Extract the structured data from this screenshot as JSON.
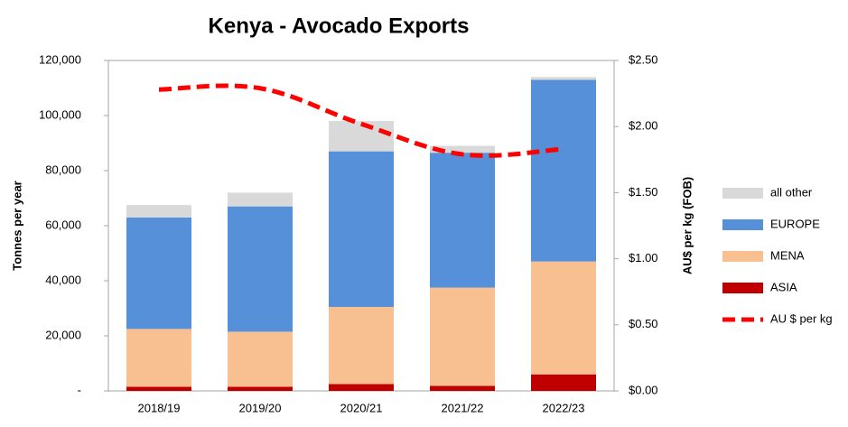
{
  "chart_data": {
    "type": "stacked-bar-line",
    "title": "Kenya - Avocado Exports",
    "y_label": "Tonnes per year",
    "y2_label": "AU$ per kg (FOB)",
    "categories": [
      "2018/19",
      "2019/20",
      "2020/21",
      "2021/22",
      "2022/23"
    ],
    "series": [
      {
        "name": "ASIA",
        "color": "#c00000",
        "values": [
          1500,
          1500,
          2500,
          1800,
          6000
        ]
      },
      {
        "name": "MENA",
        "color": "#f8c090",
        "values": [
          21000,
          20000,
          28000,
          35700,
          41000
        ]
      },
      {
        "name": "EUROPE",
        "color": "#5590d8",
        "values": [
          40500,
          45500,
          56500,
          49000,
          66000
        ]
      },
      {
        "name": "all other",
        "color": "#d9d9d9",
        "values": [
          4500,
          5000,
          11000,
          2500,
          1000
        ]
      },
      {
        "name": "AU $ per kg",
        "color": "#ff0000",
        "axis": "y2",
        "values": [
          2.28,
          2.29,
          2.02,
          1.79,
          1.83
        ]
      }
    ],
    "legend_order": [
      3,
      2,
      1,
      0,
      4
    ],
    "legend": "right",
    "ylim": [
      0,
      120000
    ],
    "yticks": [
      {
        "value": 0,
        "label": "-"
      },
      {
        "value": 20000,
        "label": "20,000"
      },
      {
        "value": 40000,
        "label": "40,000"
      },
      {
        "value": 60000,
        "label": "60,000"
      },
      {
        "value": 80000,
        "label": "80,000"
      },
      {
        "value": 100000,
        "label": "100,000"
      },
      {
        "value": 120000,
        "label": "120,000"
      }
    ],
    "y2lim": [
      0,
      2.5
    ],
    "y2ticks": [
      {
        "value": 0,
        "label": "$0.00"
      },
      {
        "value": 0.5,
        "label": "$0.50"
      },
      {
        "value": 1,
        "label": "$1.00"
      },
      {
        "value": 1.5,
        "label": "$1.50"
      },
      {
        "value": 2,
        "label": "$2.00"
      },
      {
        "value": 2.5,
        "label": "$2.50"
      }
    ]
  }
}
